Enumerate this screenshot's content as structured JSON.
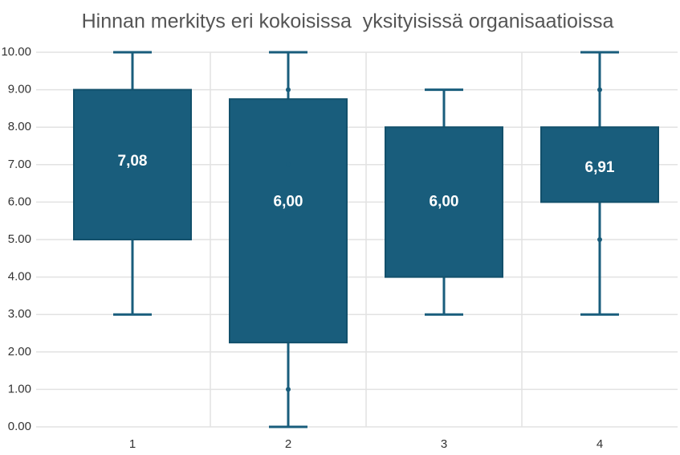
{
  "chart_data": {
    "type": "box",
    "title": "Hinnan merkitys eri kokoisissa  yksityisissä organisaatioissa",
    "categories": [
      "1",
      "2",
      "3",
      "4"
    ],
    "color": "#195d7c",
    "grid": true,
    "ylim": [
      0,
      10
    ],
    "yticks": [
      {
        "value": 0,
        "label": "0.00"
      },
      {
        "value": 1,
        "label": "1.00"
      },
      {
        "value": 2,
        "label": "2.00"
      },
      {
        "value": 3,
        "label": "3.00"
      },
      {
        "value": 4,
        "label": "4.00"
      },
      {
        "value": 5,
        "label": "5.00"
      },
      {
        "value": 6,
        "label": "6.00"
      },
      {
        "value": 7,
        "label": "7.00"
      },
      {
        "value": 8,
        "label": "8.00"
      },
      {
        "value": 9,
        "label": "9.00"
      },
      {
        "value": 10,
        "label": "10.00"
      }
    ],
    "boxes": [
      {
        "min": 3,
        "q1": 5,
        "q3": 9,
        "max": 10,
        "mean": 7.08,
        "mean_label": "7,08",
        "points": [
          7
        ]
      },
      {
        "min": 0,
        "q1": 2.25,
        "q3": 8.75,
        "max": 10,
        "mean": 6.0,
        "mean_label": "6,00",
        "points": [
          1,
          7,
          9
        ]
      },
      {
        "min": 3,
        "q1": 4,
        "q3": 8,
        "max": 9,
        "mean": 6.0,
        "mean_label": "6,00",
        "points": [
          6
        ]
      },
      {
        "min": 3,
        "q1": 6,
        "q3": 8,
        "max": 10,
        "mean": 6.91,
        "mean_label": "6,91",
        "points": [
          5,
          7,
          9
        ]
      }
    ]
  }
}
